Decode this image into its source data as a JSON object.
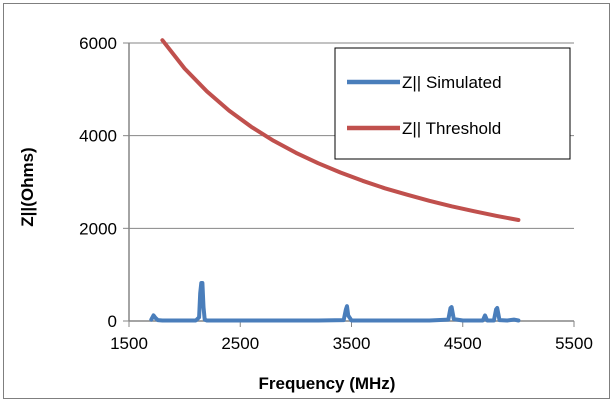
{
  "chart_data": {
    "type": "line",
    "title": "",
    "xlabel": "Frequency (MHz)",
    "ylabel": "Z||(Ohms)",
    "xlim": [
      1500,
      5500
    ],
    "ylim": [
      0,
      6000
    ],
    "xticks": [
      1500,
      2500,
      3500,
      4500,
      5500
    ],
    "yticks": [
      0,
      2000,
      4000,
      6000
    ],
    "grid": "horizontal",
    "legend_position": "top-right",
    "series": [
      {
        "name": "Z|| Simulated",
        "color": "#4a7ebb",
        "x": [
          1700,
          1720,
          1740,
          1760,
          1800,
          1900,
          2000,
          2100,
          2130,
          2140,
          2150,
          2160,
          2170,
          2180,
          2200,
          2400,
          2800,
          3200,
          3430,
          3450,
          3460,
          3470,
          3500,
          3800,
          4200,
          4370,
          4390,
          4400,
          4420,
          4500,
          4680,
          4700,
          4720,
          4780,
          4800,
          4810,
          4830,
          4900,
          4960,
          5000
        ],
        "y": [
          30,
          120,
          60,
          20,
          10,
          10,
          10,
          10,
          80,
          600,
          820,
          820,
          300,
          30,
          10,
          10,
          10,
          10,
          20,
          250,
          320,
          120,
          10,
          10,
          10,
          30,
          280,
          300,
          40,
          10,
          10,
          120,
          10,
          10,
          250,
          280,
          20,
          10,
          30,
          10
        ]
      },
      {
        "name": "Z|| Threshold",
        "color": "#c0504d",
        "x": [
          1800,
          2000,
          2200,
          2400,
          2600,
          2800,
          3000,
          3200,
          3400,
          3600,
          3800,
          4000,
          4200,
          4400,
          4600,
          4800,
          5000
        ],
        "y": [
          6060,
          5450,
          4955,
          4540,
          4190,
          3890,
          3630,
          3405,
          3205,
          3025,
          2865,
          2725,
          2595,
          2475,
          2370,
          2270,
          2180
        ]
      }
    ]
  }
}
